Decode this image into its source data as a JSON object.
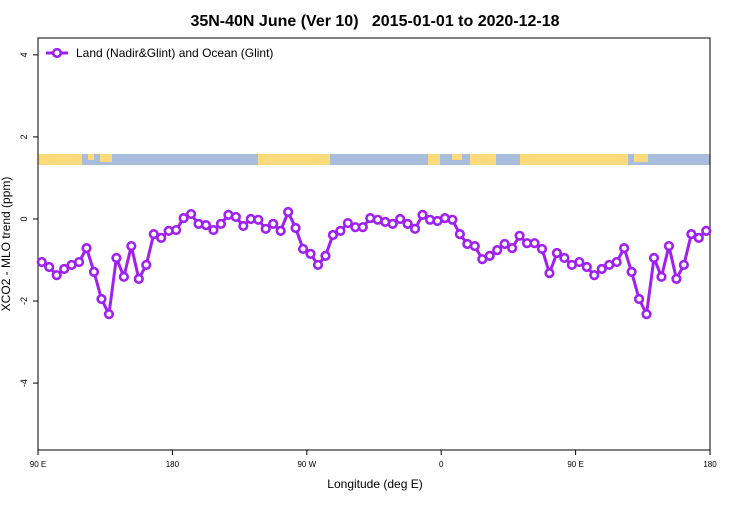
{
  "chart_data": {
    "type": "line",
    "title": "35N-40N June (Ver 10)   2015-01-01 to 2020-12-18",
    "xlabel": "Longitude (deg E)",
    "ylabel": "XCO2 - MLO trend (ppm)",
    "x": [
      92.5,
      97.5,
      102.5,
      107.5,
      112.5,
      117.5,
      122.5,
      127.5,
      132.5,
      137.5,
      142.5,
      147.5,
      152.5,
      157.5,
      162.5,
      167.5,
      172.5,
      177.5,
      182.5,
      187.5,
      192.5,
      197.5,
      202.5,
      207.5,
      212.5,
      217.5,
      222.5,
      227.5,
      232.5,
      237.5,
      242.5,
      247.5,
      252.5,
      257.5,
      262.5,
      267.5,
      272.5,
      277.5,
      282.5,
      287.5,
      292.5,
      297.5,
      302.5,
      307.5,
      312.5,
      317.5,
      322.5,
      327.5,
      332.5,
      337.5,
      342.5,
      347.5,
      352.5,
      357.5,
      362.5,
      367.5,
      372.5,
      377.5,
      382.5,
      387.5,
      392.5,
      397.5,
      402.5,
      407.5,
      412.5,
      417.5,
      422.5,
      427.5,
      432.5,
      437.5,
      442.5,
      447.5,
      452.5,
      457.5,
      462.5,
      467.5,
      472.5,
      477.5,
      482.5,
      487.5,
      492.5,
      497.5,
      502.5,
      507.5,
      512.5,
      517.5,
      522.5,
      527.5,
      532.5,
      537.5
    ],
    "series": [
      {
        "name": "Land (Nadir&Glint) and Ocean (Glint)",
        "color": "#a020f0",
        "values": [
          -1.05,
          -1.17,
          -1.37,
          -1.22,
          -1.12,
          -1.05,
          -0.71,
          -1.29,
          -1.95,
          -2.32,
          -0.95,
          -1.41,
          -0.66,
          -1.46,
          -1.12,
          -0.37,
          -0.46,
          -0.29,
          -0.27,
          0.02,
          0.12,
          -0.12,
          -0.15,
          -0.27,
          -0.12,
          0.1,
          0.05,
          -0.17,
          0,
          -0.02,
          -0.24,
          -0.12,
          -0.29,
          0.17,
          -0.22,
          -0.73,
          -0.85,
          -1.12,
          -0.9,
          -0.39,
          -0.29,
          -0.1,
          -0.2,
          -0.2,
          0.02,
          -0.02,
          -0.07,
          -0.12,
          0,
          -0.12,
          -0.24,
          0.1,
          -0.02,
          -0.05,
          0.02,
          -0.02,
          -0.37,
          -0.61,
          -0.66,
          -0.98,
          -0.9,
          -0.76,
          -0.61,
          -0.71,
          -0.41,
          -0.59,
          -0.59,
          -0.73,
          -1.32,
          -0.83,
          -0.95,
          -1.12,
          -1.05,
          -1.17,
          -1.37,
          -1.22,
          -1.12,
          -1.05,
          -0.71,
          -1.29,
          -1.95,
          -2.32,
          -0.95,
          -1.41,
          -0.66,
          -1.46,
          -1.12,
          -0.37,
          -0.46,
          -0.29
        ]
      }
    ],
    "xlim": [
      90,
      540
    ],
    "xticks": [
      {
        "value": 90,
        "label": "90 E"
      },
      180,
      {
        "value": 270,
        "label": "90 W"
      },
      {
        "value": 360,
        "label": "0"
      },
      {
        "value": 450,
        "label": "90 E"
      },
      {
        "value": 540,
        "label": "180"
      }
    ],
    "ylim": [
      -5.63,
      4.41
    ],
    "yticks": [
      -4,
      -2,
      0,
      2,
      4
    ],
    "legend": "top-left"
  }
}
